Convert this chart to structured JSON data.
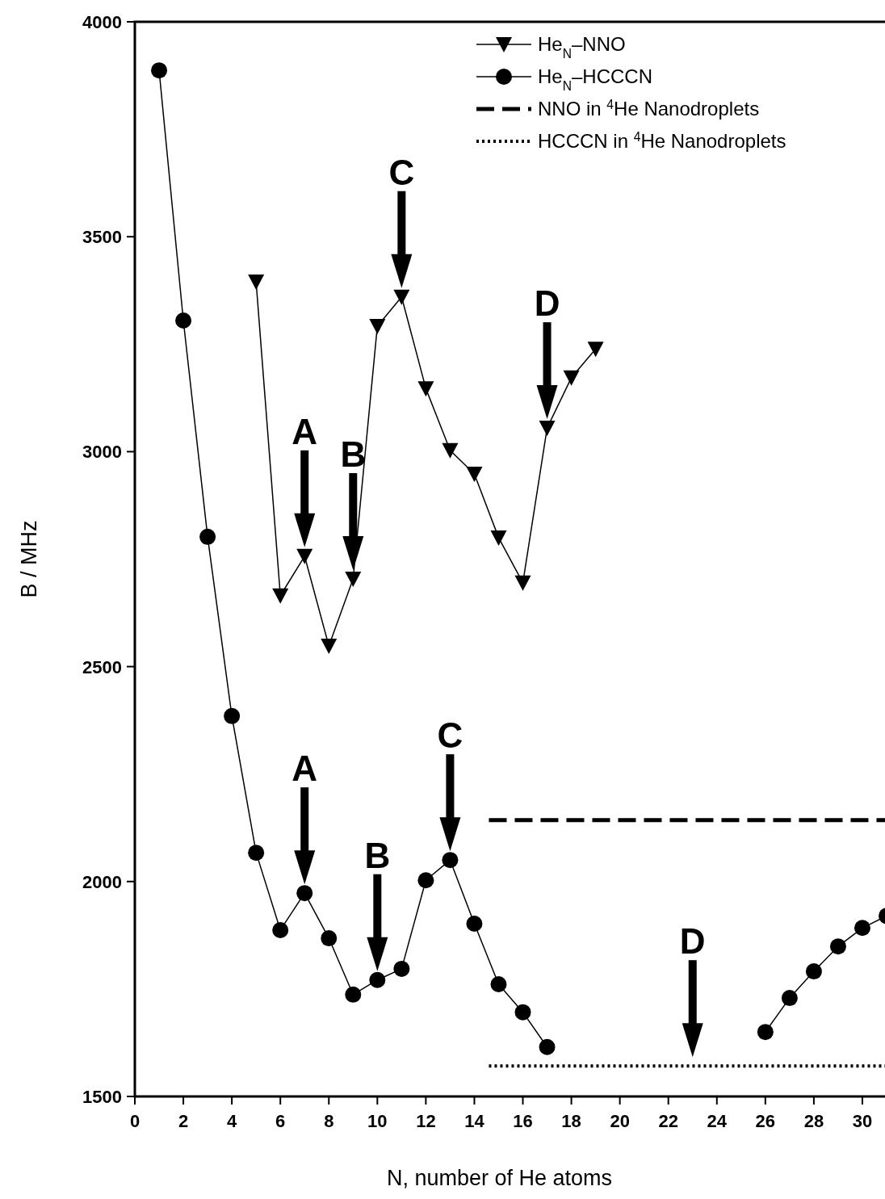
{
  "chart_data": {
    "type": "line",
    "xlabel": "N, number of He atoms",
    "ylabel": "B / MHz",
    "xlim": [
      0,
      31
    ],
    "ylim": [
      1500,
      4000
    ],
    "xticks": [
      0,
      2,
      4,
      6,
      8,
      10,
      12,
      14,
      16,
      18,
      20,
      22,
      24,
      26,
      28,
      30
    ],
    "yticks": [
      1500,
      2000,
      2500,
      3000,
      3500,
      4000
    ],
    "grid": false,
    "legend": "top right",
    "series": [
      {
        "name": "He$_{N}$–NNO",
        "color": "#000000",
        "marker": "triangle",
        "line_style": "solid",
        "x": [
          5,
          6,
          7,
          8,
          9,
          10,
          11,
          12,
          13,
          14,
          15,
          16,
          17,
          18,
          19
        ],
        "values": [
          3395,
          2665,
          2757,
          2548,
          2704,
          3292,
          3360,
          3147,
          3003,
          2948,
          2800,
          2695,
          3055,
          3172,
          3239
        ]
      },
      {
        "name": "He$_{N}$–HCCCN",
        "color": "#000000",
        "marker": "circle",
        "line_style": "solid",
        "x": [
          1,
          2,
          3,
          4,
          5,
          6,
          7,
          8,
          9,
          10,
          11,
          12,
          13,
          14,
          15,
          16,
          17,
          18,
          19,
          20,
          21,
          22,
          23,
          24,
          25,
          26,
          27,
          28,
          29,
          30,
          31
        ],
        "values": [
          3887,
          3305,
          2802,
          2385,
          2067,
          1887,
          1973,
          1868,
          1737,
          1771,
          1797,
          2003,
          2050,
          1902,
          1761,
          1696,
          1615,
          null,
          null,
          null,
          null,
          null,
          null,
          null,
          null,
          1650,
          1729,
          1791,
          1849,
          1892,
          1920
        ]
      },
      {
        "name": "NNO in $^{4}$He Nanodroplets",
        "color": "#000000",
        "marker": "none",
        "line_style": "dashed",
        "x": [
          14.6,
          31
        ],
        "values": [
          2143,
          2143
        ]
      },
      {
        "name": "HCCCN in $^{4}$He Nanodroplets",
        "color": "#000000",
        "marker": "none",
        "line_style": "dotted",
        "x": [
          14.6,
          31
        ],
        "values": [
          1571,
          1571
        ]
      }
    ],
    "annotations": [
      {
        "text": "A",
        "x": 7,
        "y": 2757
      },
      {
        "text": "B",
        "x": 9,
        "y": 2704
      },
      {
        "text": "C",
        "x": 11,
        "y": 3360
      },
      {
        "text": "D",
        "x": 17,
        "y": 3055
      },
      {
        "text": "A",
        "x": 7,
        "y": 1973
      },
      {
        "text": "B",
        "x": 10,
        "y": 1771
      },
      {
        "text": "C",
        "x": 13,
        "y": 2050
      },
      {
        "text": "D",
        "x": 23,
        "y": 1571
      }
    ]
  }
}
